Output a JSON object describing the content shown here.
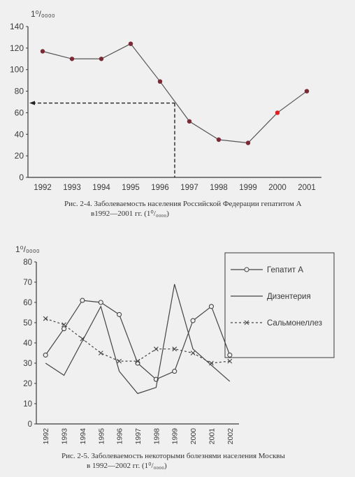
{
  "chart_data": [
    {
      "type": "line",
      "unit_label": "1⁰/₀₀₀₀",
      "categories": [
        "1992",
        "1993",
        "1994",
        "1995",
        "1996",
        "1997",
        "1998",
        "1999",
        "2000",
        "2001"
      ],
      "series": [
        {
          "values": [
            117,
            110,
            110,
            124,
            89,
            52,
            35,
            32,
            60,
            80
          ]
        }
      ],
      "highlight_index": 8,
      "highlight_color": "#e02020",
      "reference_line": {
        "x_value": 1996.5,
        "y_value": 69
      },
      "ylim": [
        0,
        140
      ],
      "yticks": [
        0,
        20,
        40,
        60,
        80,
        100,
        120,
        140
      ],
      "caption_line1": "Рис. 2-4. Заболеваемость населения Российской Федерации гепатитом А",
      "caption_line2": "в1992—2001 гг. (1⁰/₀₀₀₀)"
    },
    {
      "type": "line",
      "unit_label": "1⁰/₀₀₀₀",
      "categories": [
        "1992",
        "1993",
        "1994",
        "1995",
        "1996",
        "1997",
        "1998",
        "1999",
        "2000",
        "2001",
        "2002"
      ],
      "series": [
        {
          "name": "Гепатит А",
          "marker": "circle",
          "values": [
            34,
            47,
            61,
            60,
            54,
            30,
            22,
            26,
            51,
            58,
            34
          ]
        },
        {
          "name": "Дизентерия",
          "marker": "none",
          "values": [
            30,
            24,
            41,
            58,
            26,
            15,
            18,
            69,
            37,
            29,
            21
          ]
        },
        {
          "name": "Сальмонеллез",
          "marker": "x",
          "values": [
            52,
            49,
            42,
            35,
            31,
            31,
            37,
            37,
            35,
            30,
            31
          ]
        }
      ],
      "ylim": [
        0,
        80
      ],
      "yticks": [
        0,
        10,
        20,
        30,
        40,
        50,
        60,
        70,
        80
      ],
      "legend_position": "top-right",
      "caption_line1": "Рис. 2-5. Заболеваемость некоторыми болезнями населения Москвы",
      "caption_line2": "в 1992—2002 гг. (1⁰/₀₀₀₀)"
    }
  ]
}
